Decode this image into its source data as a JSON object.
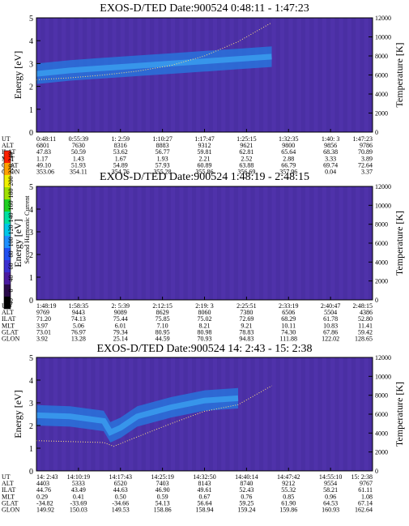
{
  "colors": {
    "background_plot": "#4a2fa3",
    "band": "#2a6fd8",
    "band_core": "#3aa0f0",
    "frame": "#000000"
  },
  "colorbar": {
    "label": "Second Harmonic Current",
    "ticks": [
      "-40",
      "0",
      "40",
      "60",
      "80",
      "100",
      "120",
      "140",
      "160",
      "180",
      "200",
      "220",
      "240"
    ],
    "colors": [
      "#000000",
      "#2a0a4a",
      "#4a1aa0",
      "#3a2fd0",
      "#2050f0",
      "#1e90ff",
      "#00c8e8",
      "#00e0a0",
      "#20d020",
      "#a0e000",
      "#f0f000",
      "#ffa000",
      "#ff2000"
    ]
  },
  "chart_data": [
    {
      "type": "heatmap",
      "title": "EXOS-D/TED Date:900524 0:48:11 - 1:47:23",
      "ylabel": "Energy [eV]",
      "y2label": "Temperature [K]",
      "ylim": [
        0,
        5
      ],
      "y2lim": [
        0,
        12000
      ],
      "yticks": [
        "0",
        "1",
        "2",
        "3",
        "4",
        "5"
      ],
      "y2ticks": [
        "0",
        "2000",
        "4000",
        "6000",
        "8000",
        "10000",
        "12000"
      ],
      "orbit_labels": [
        "UT",
        "ALT",
        "ILAT",
        "MLT",
        "GLAT",
        "GLON"
      ],
      "orbit_columns": [
        [
          "0:48:11",
          "6801",
          "47.83",
          "1.17",
          "49.10",
          "353.06"
        ],
        [
          "0:55:39",
          "7630",
          "50.59",
          "1.43",
          "51.93",
          "354.11"
        ],
        [
          "1: 2:59",
          "8316",
          "53.62",
          "1.67",
          "54.89",
          "354.76"
        ],
        [
          "1:10:27",
          "8883",
          "56.77",
          "1.93",
          "57.93",
          "355.28"
        ],
        [
          "1:17:47",
          "9312",
          "59.81",
          "2.21",
          "60.89",
          "355.86"
        ],
        [
          "1:25:15",
          "9621",
          "62.81",
          "2.52",
          "63.88",
          "356.69"
        ],
        [
          "1:32:35",
          "9800",
          "65.64",
          "2.88",
          "66.79",
          "357.96"
        ],
        [
          "1:40: 3",
          "9856",
          "68.38",
          "3.33",
          "69.74",
          "0.04"
        ],
        [
          "1:47:23",
          "9786",
          "70.89",
          "3.89",
          "72.64",
          "3.37"
        ]
      ],
      "band": [
        [
          0,
          2.55
        ],
        [
          0.1,
          2.7
        ],
        [
          0.2,
          2.8
        ],
        [
          0.3,
          2.9
        ],
        [
          0.4,
          3.0
        ],
        [
          0.5,
          3.1
        ],
        [
          0.6,
          3.2
        ],
        [
          0.7,
          3.3
        ]
      ],
      "temp": [
        [
          0,
          5500
        ],
        [
          0.1,
          5700
        ],
        [
          0.2,
          6000
        ],
        [
          0.3,
          6400
        ],
        [
          0.4,
          7000
        ],
        [
          0.5,
          8000
        ],
        [
          0.6,
          9500
        ],
        [
          0.7,
          11500
        ]
      ]
    },
    {
      "type": "heatmap",
      "title": "EXOS-D/TED Date:900524 1:48:19 - 2:48:15",
      "ylabel": "Energy [eV]",
      "y2label": "Temperature [K]",
      "ylim": [
        0,
        5
      ],
      "y2lim": [
        0,
        12000
      ],
      "yticks": [
        "0",
        "1",
        "2",
        "3",
        "4",
        "5"
      ],
      "y2ticks": [
        "0",
        "2000",
        "4000",
        "6000",
        "8000",
        "10000",
        "12000"
      ],
      "orbit_labels": [
        "UT",
        "ALT",
        "ILAT",
        "MLT",
        "GLAT",
        "GLON"
      ],
      "orbit_columns": [
        [
          "1:48:19",
          "9769",
          "71.20",
          "3.97",
          "73.01",
          "3.92"
        ],
        [
          "1:58:35",
          "9443",
          "74.13",
          "5.06",
          "76.97",
          "13.28"
        ],
        [
          "2: 5:39",
          "9089",
          "75.44",
          "6.01",
          "79.34",
          "25.14"
        ],
        [
          "2:12:15",
          "8629",
          "75.85",
          "7.10",
          "80.95",
          "44.59"
        ],
        [
          "2:19: 3",
          "8060",
          "75.02",
          "8.21",
          "80.98",
          "70.93"
        ],
        [
          "2:25:51",
          "7380",
          "72.69",
          "9.21",
          "78.83",
          "94.83"
        ],
        [
          "2:33:19",
          "6506",
          "68.29",
          "10.11",
          "74.30",
          "111.88"
        ],
        [
          "2:40:47",
          "5504",
          "61.78",
          "10.83",
          "67.86",
          "122.02"
        ],
        [
          "2:48:15",
          "4386",
          "52.80",
          "11.41",
          "59.42",
          "128.65"
        ]
      ],
      "band": [],
      "temp": []
    },
    {
      "type": "heatmap",
      "title": "EXOS-D/TED Date:900524 14: 2:43 - 15: 2:38",
      "ylabel": "Energy [eV]",
      "y2label": "Temperature [K]",
      "ylim": [
        0,
        5
      ],
      "y2lim": [
        0,
        12000
      ],
      "yticks": [
        "0",
        "1",
        "2",
        "3",
        "4",
        "5"
      ],
      "y2ticks": [
        "0",
        "2000",
        "4000",
        "6000",
        "8000",
        "10000",
        "12000"
      ],
      "orbit_labels": [
        "UT",
        "ALT",
        "ILAT",
        "MLT",
        "GLAT",
        "GLON"
      ],
      "orbit_columns": [
        [
          "14: 2:43",
          "4403",
          "44.76",
          "0.29",
          "-34.82",
          "149.92"
        ],
        [
          "14:10:19",
          "5333",
          "43.49",
          "0.41",
          "-33.69",
          "150.03"
        ],
        [
          "14:17:43",
          "6520",
          "44.63",
          "0.50",
          "-34.66",
          "149.53"
        ],
        [
          "14:25:19",
          "7403",
          "46.90",
          "0.59",
          "54.13",
          "158.86"
        ],
        [
          "14:32:50",
          "8143",
          "49.61",
          "0.67",
          "56.64",
          "158.94"
        ],
        [
          "14:40:14",
          "8740",
          "52.43",
          "0.76",
          "59.25",
          "159.24"
        ],
        [
          "14:47:42",
          "9212",
          "55.32",
          "0.85",
          "61.90",
          "159.86"
        ],
        [
          "14:55:10",
          "9554",
          "58.21",
          "0.96",
          "64.53",
          "160.93"
        ],
        [
          "15: 2:38",
          "9767",
          "61.11",
          "1.08",
          "67.14",
          "162.64"
        ]
      ],
      "band": [
        [
          0,
          2.45
        ],
        [
          0.1,
          2.4
        ],
        [
          0.2,
          2.2
        ],
        [
          0.22,
          1.7
        ],
        [
          0.25,
          1.9
        ],
        [
          0.3,
          2.4
        ],
        [
          0.4,
          2.8
        ],
        [
          0.5,
          3.1
        ],
        [
          0.6,
          3.2
        ]
      ],
      "temp": [
        [
          0,
          3200
        ],
        [
          0.1,
          3100
        ],
        [
          0.2,
          3000
        ],
        [
          0.23,
          2600
        ],
        [
          0.3,
          3600
        ],
        [
          0.4,
          5000
        ],
        [
          0.5,
          6300
        ],
        [
          0.6,
          7000
        ],
        [
          0.7,
          9000
        ]
      ]
    }
  ]
}
